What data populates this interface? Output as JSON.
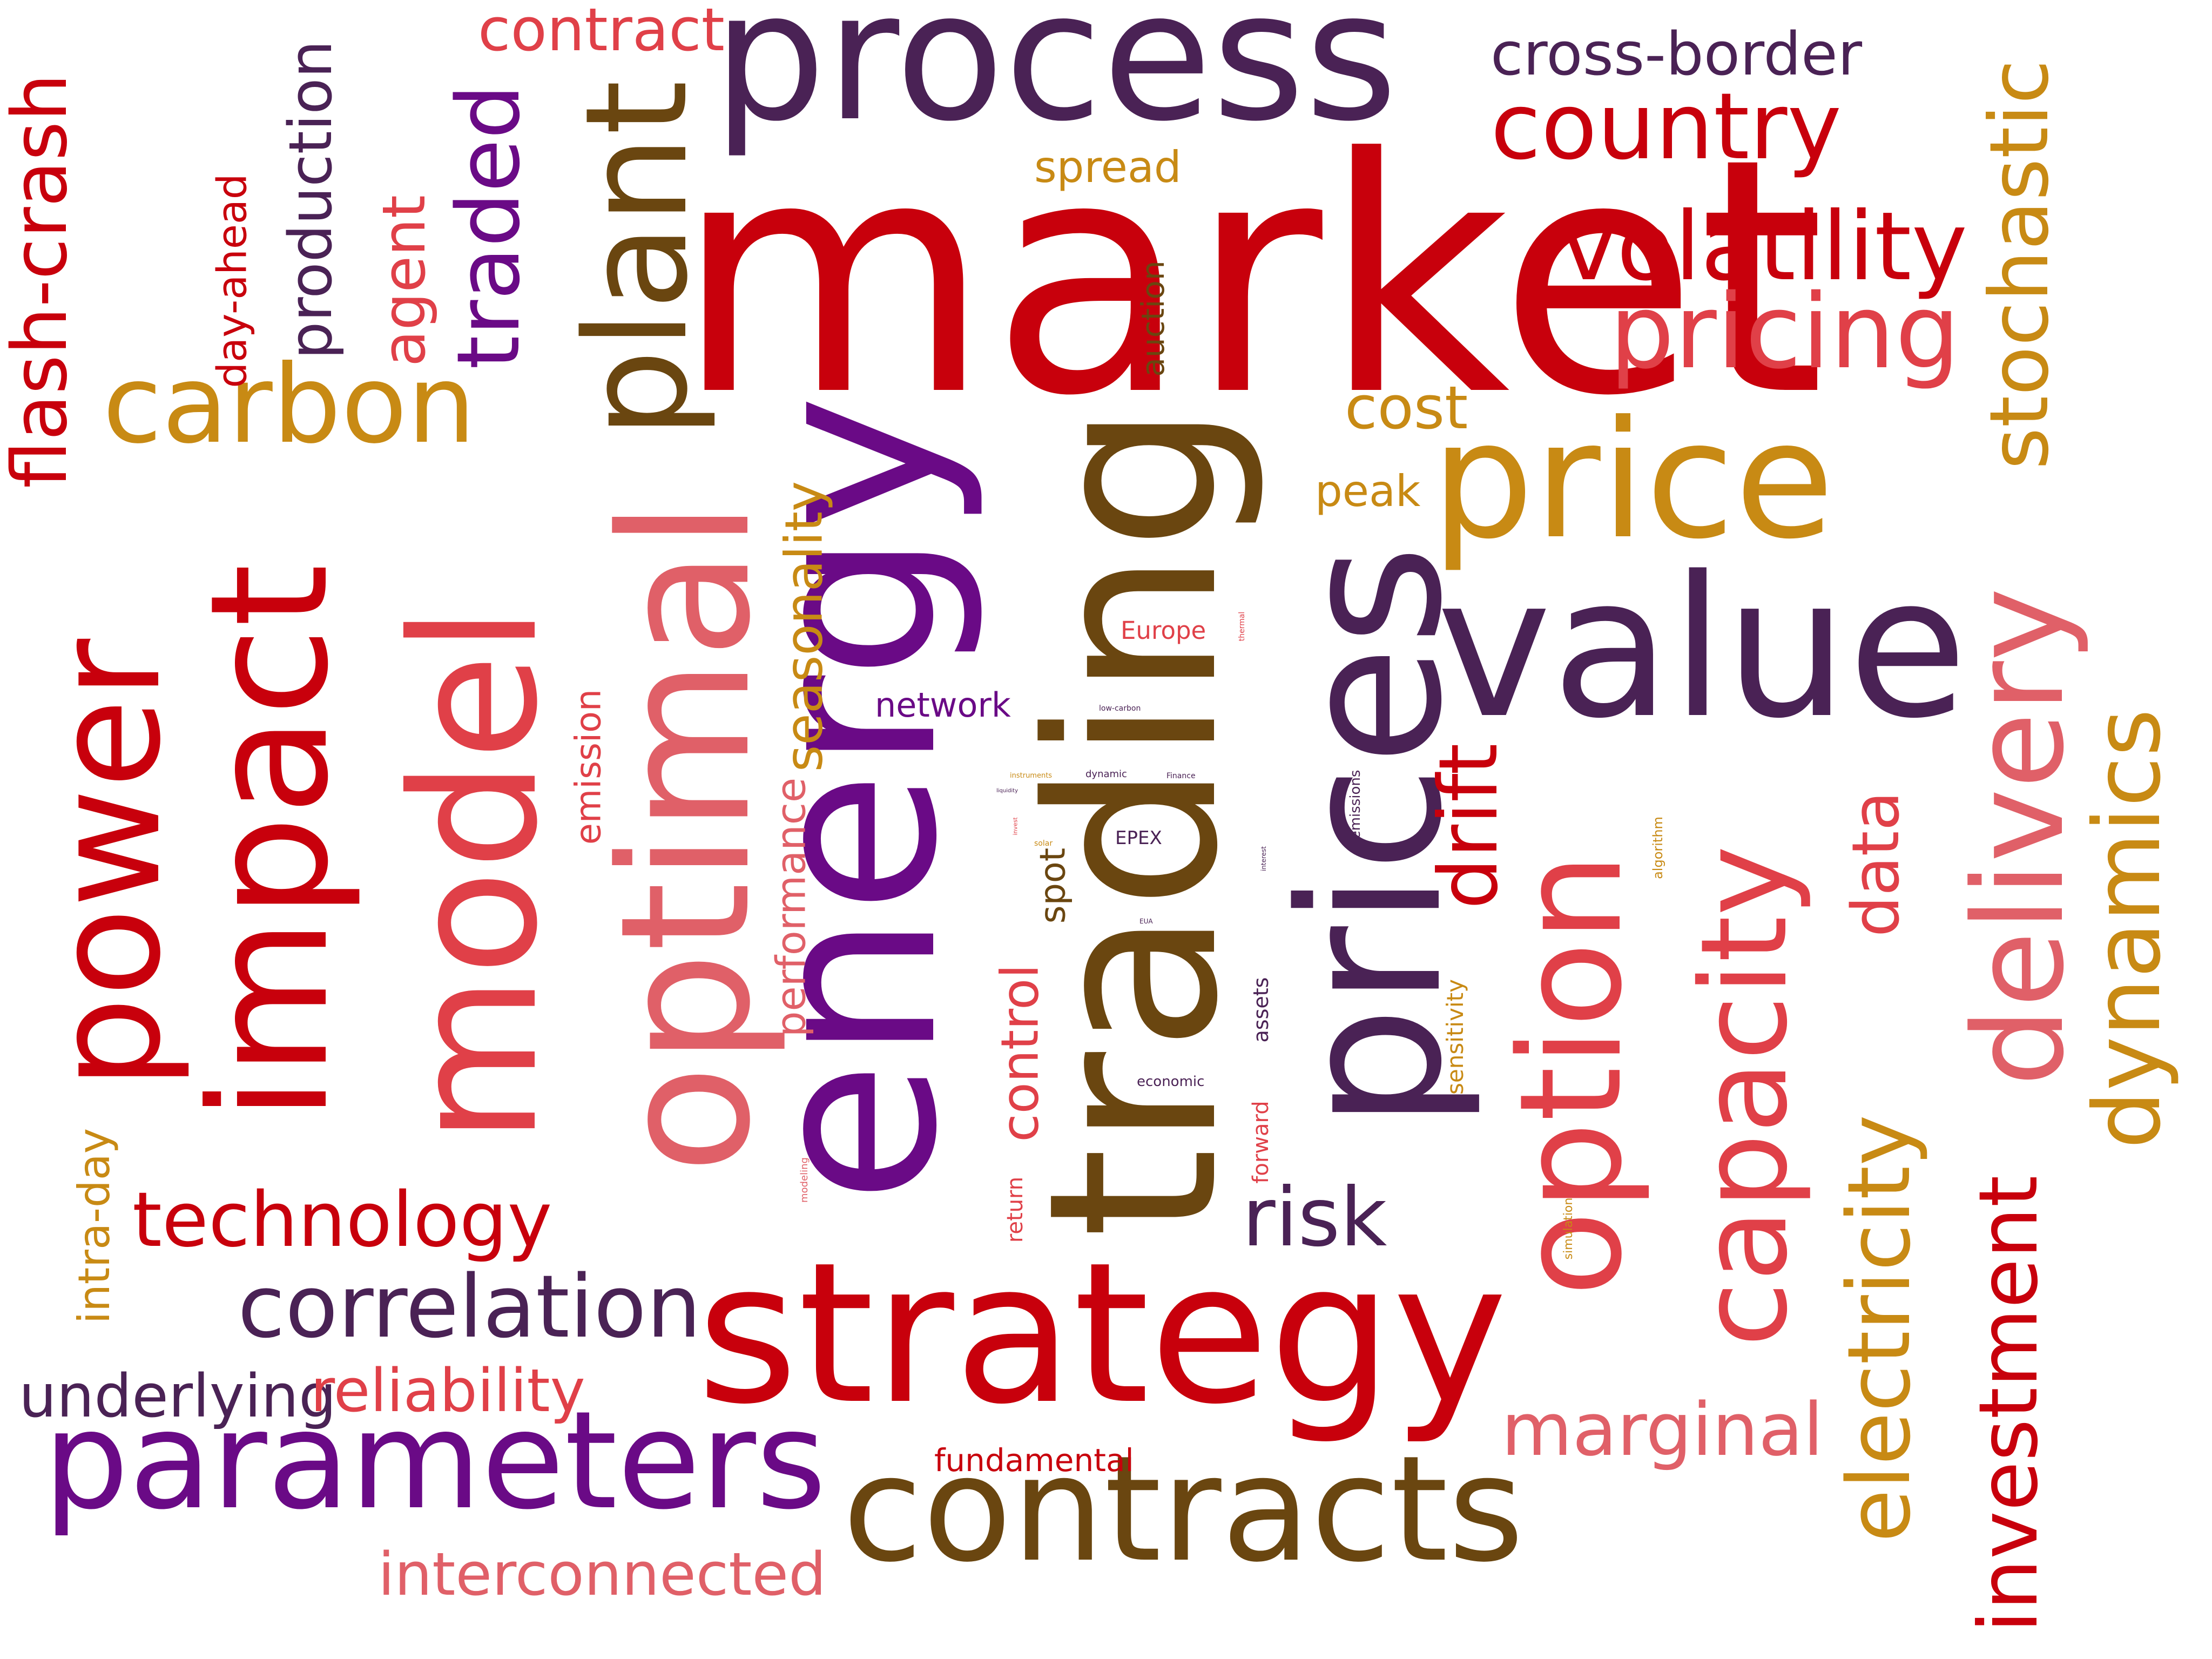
{
  "colors": {
    "red": "#c8000c",
    "coral": "#e04048",
    "salmon": "#e06068",
    "plum": "#4a2255",
    "purple": "#6a0a86",
    "brown": "#6a4610",
    "gold": "#c88a14"
  },
  "words": [
    {
      "text": "market"
    },
    {
      "text": "energy"
    },
    {
      "text": "trading"
    },
    {
      "text": "prices"
    },
    {
      "text": "process"
    },
    {
      "text": "strategy"
    },
    {
      "text": "optimal"
    },
    {
      "text": "model"
    },
    {
      "text": "value"
    },
    {
      "text": "price"
    },
    {
      "text": "contracts"
    },
    {
      "text": "parameters"
    },
    {
      "text": "impact"
    },
    {
      "text": "power"
    },
    {
      "text": "plant"
    },
    {
      "text": "option"
    },
    {
      "text": "delivery"
    },
    {
      "text": "capacity"
    },
    {
      "text": "dynamics"
    },
    {
      "text": "carbon"
    },
    {
      "text": "pricing"
    },
    {
      "text": "volatility"
    },
    {
      "text": "country"
    },
    {
      "text": "correlation"
    },
    {
      "text": "stochastic"
    },
    {
      "text": "electricity"
    },
    {
      "text": "investment"
    },
    {
      "text": "technology"
    },
    {
      "text": "traded"
    },
    {
      "text": "flash-crash"
    },
    {
      "text": "production"
    },
    {
      "text": "cross-border"
    },
    {
      "text": "contract"
    },
    {
      "text": "underlying"
    },
    {
      "text": "reliability"
    },
    {
      "text": "interconnected"
    },
    {
      "text": "marginal"
    },
    {
      "text": "risk"
    },
    {
      "text": "drift"
    },
    {
      "text": "data"
    },
    {
      "text": "agent"
    },
    {
      "text": "day-ahead"
    },
    {
      "text": "seasonality"
    },
    {
      "text": "performance"
    },
    {
      "text": "control"
    },
    {
      "text": "intra-day"
    },
    {
      "text": "cost"
    },
    {
      "text": "peak"
    },
    {
      "text": "spread"
    },
    {
      "text": "auction"
    },
    {
      "text": "network"
    },
    {
      "text": "emission"
    },
    {
      "text": "spot"
    },
    {
      "text": "fundamental"
    },
    {
      "text": "Europe"
    },
    {
      "text": "sensitivity"
    },
    {
      "text": "return"
    },
    {
      "text": "forward"
    },
    {
      "text": "assets"
    },
    {
      "text": "EPEX"
    },
    {
      "text": "emissions"
    },
    {
      "text": "algorithm"
    },
    {
      "text": "economic"
    },
    {
      "text": "simulation"
    },
    {
      "text": "modeling"
    },
    {
      "text": "thermal"
    },
    {
      "text": "low-carbon"
    },
    {
      "text": "dynamic"
    },
    {
      "text": "Finance"
    },
    {
      "text": "instruments"
    },
    {
      "text": "solar"
    },
    {
      "text": "interest"
    },
    {
      "text": "EUA"
    },
    {
      "text": "invest"
    },
    {
      "text": "liquidity"
    }
  ]
}
